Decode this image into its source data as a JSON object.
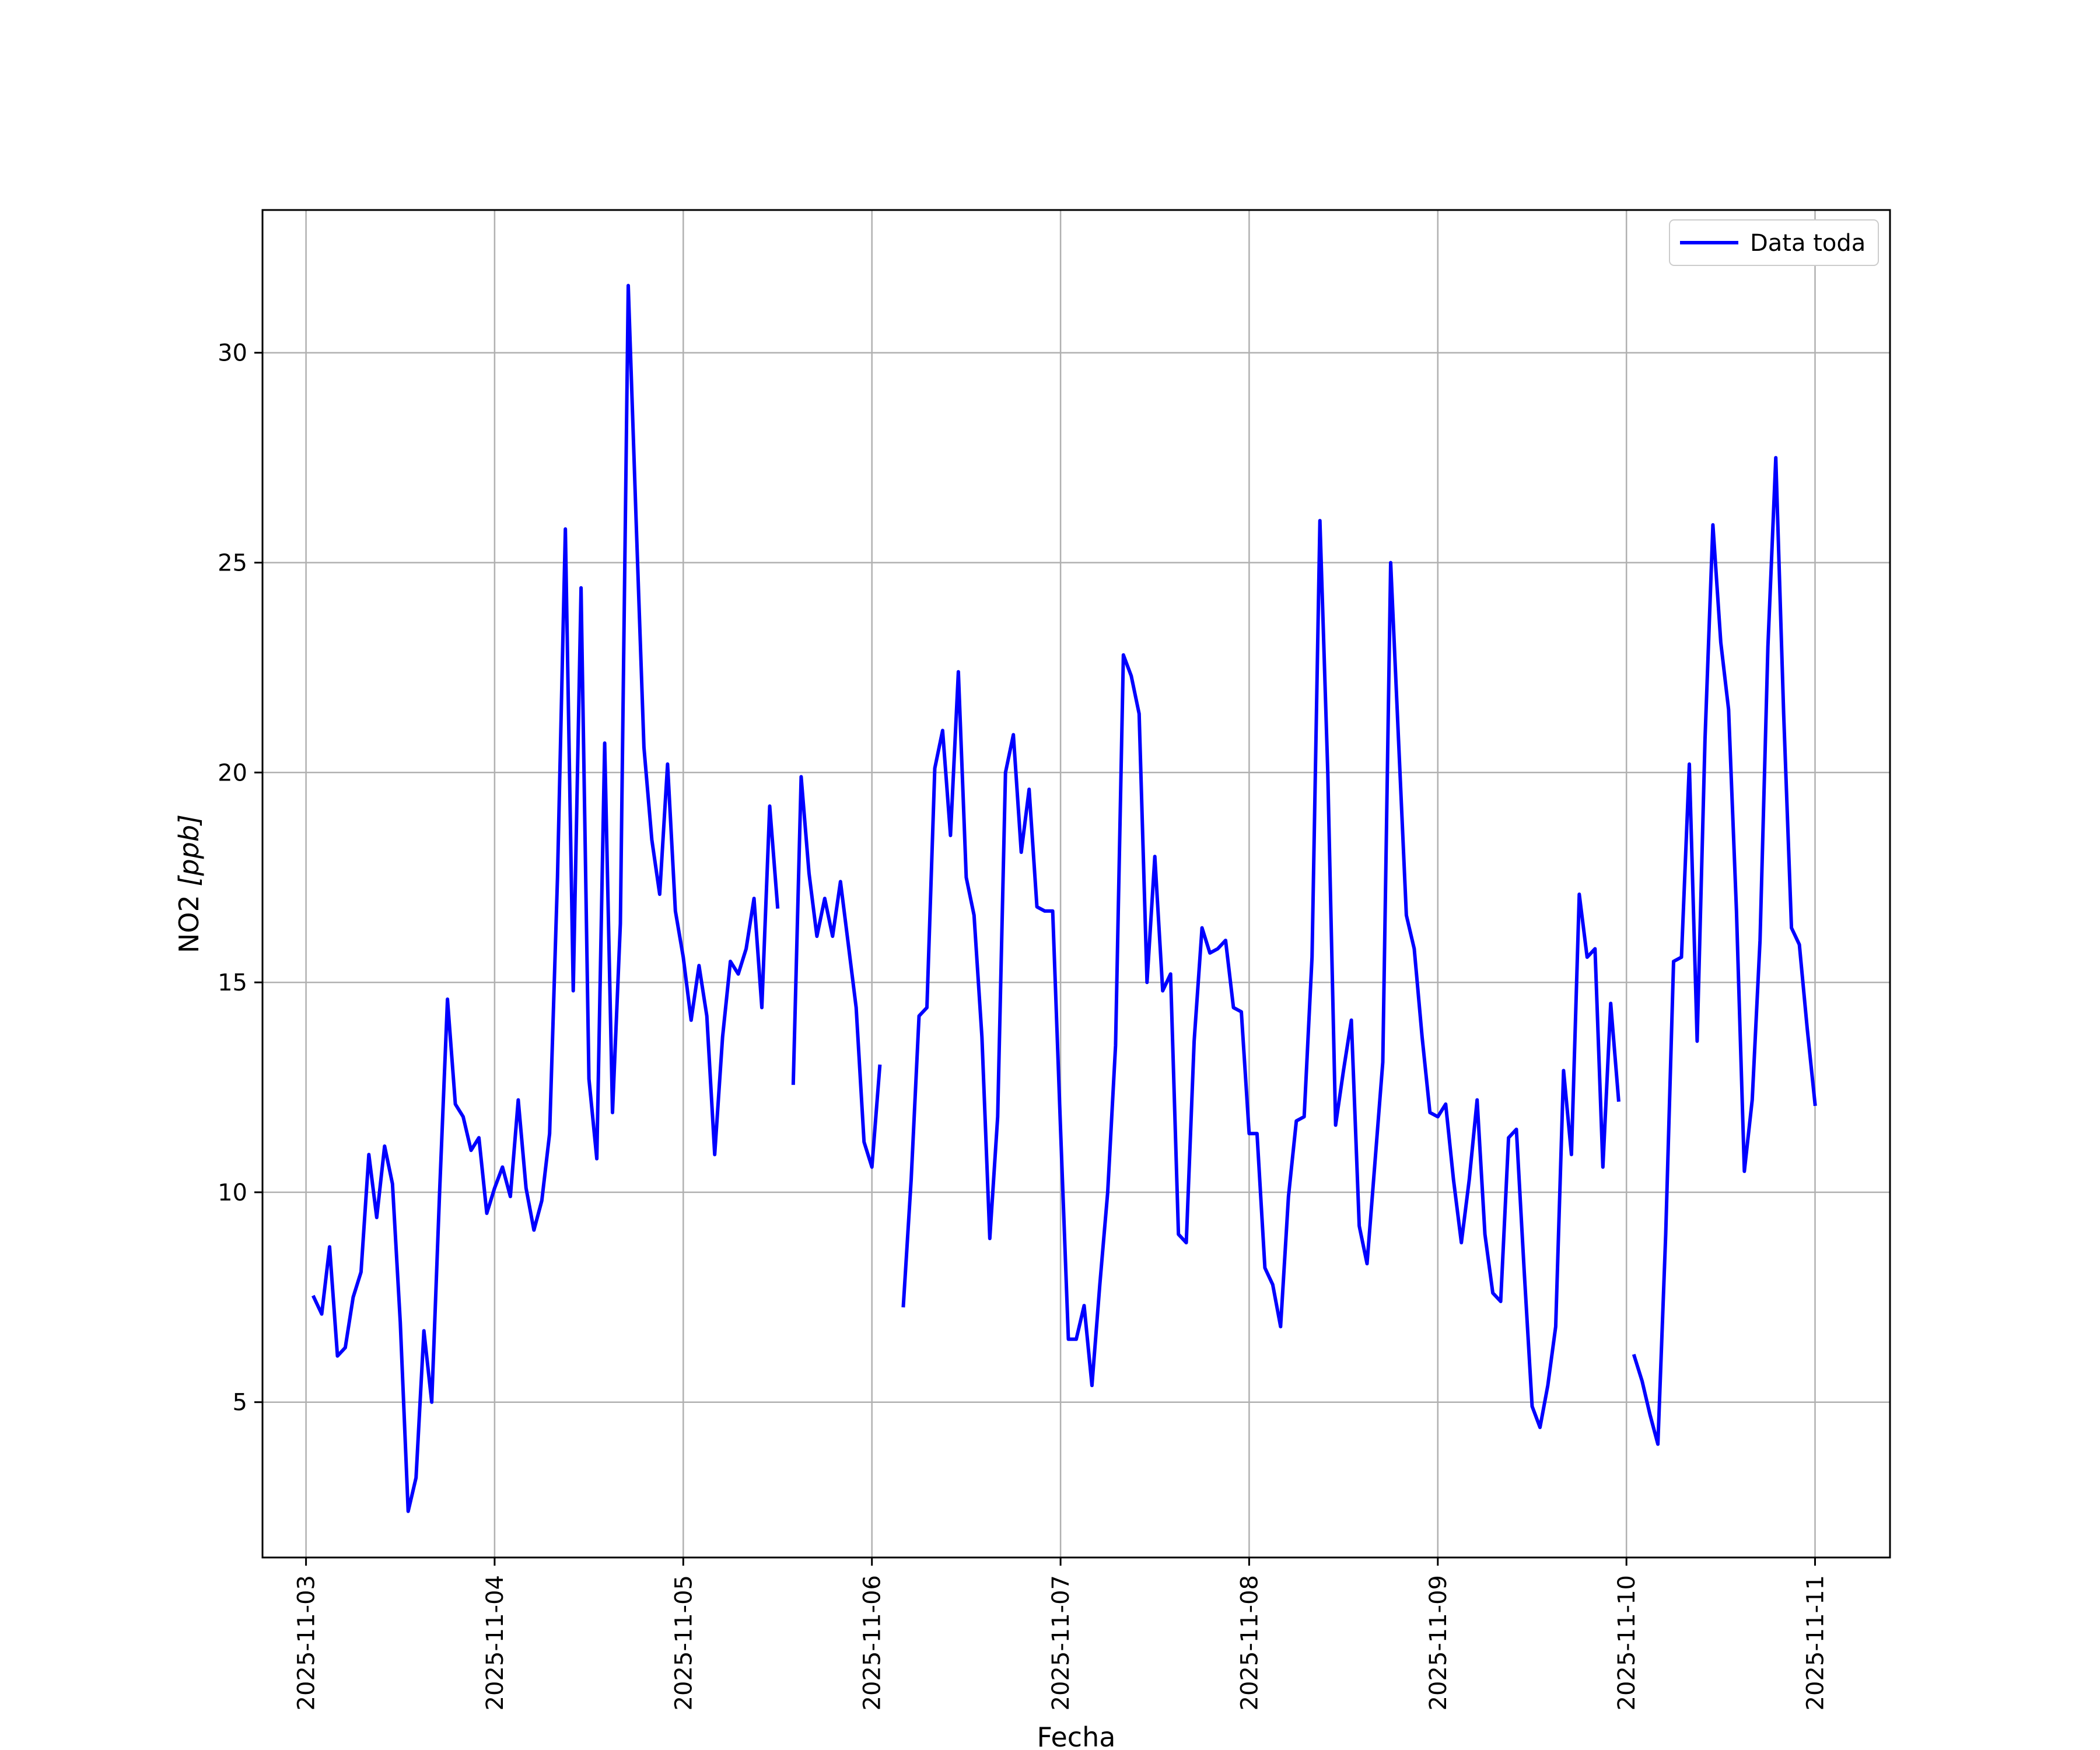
{
  "chart_data": {
    "type": "line",
    "title": "",
    "xlabel": "Fecha",
    "ylabel_main": "NO2 ",
    "ylabel_unit": "[ppb]",
    "x_axis_type": "date",
    "xlim": [
      "2025-11-02T18:28",
      "2025-11-11T09:32"
    ],
    "ylim": [
      1.3,
      33.4
    ],
    "x_ticks": [
      "2025-11-03",
      "2025-11-04",
      "2025-11-05",
      "2025-11-06",
      "2025-11-07",
      "2025-11-08",
      "2025-11-09",
      "2025-11-10",
      "2025-11-11"
    ],
    "y_ticks": [
      5,
      10,
      15,
      20,
      25,
      30
    ],
    "y_tick_labels": [
      "5",
      "10",
      "15",
      "20",
      "25",
      "30"
    ],
    "x_tick_rotation": "vertical",
    "grid": true,
    "legend_position": "top-right",
    "series": [
      {
        "name": "Data toda",
        "color": "#0000ff",
        "segments": [
          [
            [
              "2025-11-03T01:00",
              7.5
            ],
            [
              "2025-11-03T02:00",
              7.1
            ],
            [
              "2025-11-03T03:00",
              8.7
            ],
            [
              "2025-11-03T04:00",
              6.1
            ],
            [
              "2025-11-03T05:00",
              6.3
            ],
            [
              "2025-11-03T06:00",
              7.5
            ],
            [
              "2025-11-03T07:00",
              8.1
            ],
            [
              "2025-11-03T08:00",
              10.9
            ],
            [
              "2025-11-03T09:00",
              9.4
            ],
            [
              "2025-11-03T10:00",
              11.1
            ],
            [
              "2025-11-03T11:00",
              10.2
            ],
            [
              "2025-11-03T12:00",
              6.9
            ],
            [
              "2025-11-03T13:00",
              2.4
            ],
            [
              "2025-11-03T14:00",
              3.2
            ],
            [
              "2025-11-03T15:00",
              6.7
            ],
            [
              "2025-11-03T16:00",
              5.0
            ],
            [
              "2025-11-03T17:00",
              10.0
            ],
            [
              "2025-11-03T18:00",
              14.6
            ],
            [
              "2025-11-03T19:00",
              12.1
            ],
            [
              "2025-11-03T20:00",
              11.8
            ],
            [
              "2025-11-03T21:00",
              11.0
            ],
            [
              "2025-11-03T22:00",
              11.3
            ],
            [
              "2025-11-03T23:00",
              9.5
            ],
            [
              "2025-11-04T00:00",
              10.1
            ],
            [
              "2025-11-04T01:00",
              10.6
            ],
            [
              "2025-11-04T02:00",
              9.9
            ],
            [
              "2025-11-04T03:00",
              12.2
            ],
            [
              "2025-11-04T04:00",
              10.1
            ],
            [
              "2025-11-04T05:00",
              9.1
            ],
            [
              "2025-11-04T06:00",
              9.8
            ],
            [
              "2025-11-04T07:00",
              11.4
            ],
            [
              "2025-11-04T08:00",
              17.5
            ],
            [
              "2025-11-04T09:00",
              25.8
            ],
            [
              "2025-11-04T10:00",
              14.8
            ],
            [
              "2025-11-04T11:00",
              24.4
            ],
            [
              "2025-11-04T12:00",
              12.7
            ],
            [
              "2025-11-04T13:00",
              10.8
            ],
            [
              "2025-11-04T14:00",
              20.7
            ],
            [
              "2025-11-04T15:00",
              11.9
            ],
            [
              "2025-11-04T16:00",
              16.4
            ],
            [
              "2025-11-04T17:00",
              31.6
            ],
            [
              "2025-11-04T18:00",
              26.0
            ],
            [
              "2025-11-04T19:00",
              20.6
            ],
            [
              "2025-11-04T20:00",
              18.4
            ],
            [
              "2025-11-04T21:00",
              17.1
            ],
            [
              "2025-11-04T22:00",
              20.2
            ],
            [
              "2025-11-04T23:00",
              16.7
            ],
            [
              "2025-11-05T00:00",
              15.6
            ],
            [
              "2025-11-05T01:00",
              14.1
            ],
            [
              "2025-11-05T02:00",
              15.4
            ],
            [
              "2025-11-05T03:00",
              14.2
            ],
            [
              "2025-11-05T04:00",
              10.9
            ],
            [
              "2025-11-05T05:00",
              13.7
            ],
            [
              "2025-11-05T06:00",
              15.5
            ],
            [
              "2025-11-05T07:00",
              15.2
            ],
            [
              "2025-11-05T08:00",
              15.8
            ],
            [
              "2025-11-05T09:00",
              17.0
            ],
            [
              "2025-11-05T10:00",
              14.4
            ],
            [
              "2025-11-05T11:00",
              19.2
            ],
            [
              "2025-11-05T12:00",
              16.8
            ]
          ],
          [
            [
              "2025-11-05T14:00",
              12.6
            ],
            [
              "2025-11-05T15:00",
              19.9
            ],
            [
              "2025-11-05T16:00",
              17.6
            ],
            [
              "2025-11-05T17:00",
              16.1
            ],
            [
              "2025-11-05T18:00",
              17.0
            ],
            [
              "2025-11-05T19:00",
              16.1
            ],
            [
              "2025-11-05T20:00",
              17.4
            ],
            [
              "2025-11-05T21:00",
              15.9
            ],
            [
              "2025-11-05T22:00",
              14.4
            ],
            [
              "2025-11-05T23:00",
              11.2
            ],
            [
              "2025-11-06T00:00",
              10.6
            ],
            [
              "2025-11-06T01:00",
              13.0
            ]
          ],
          [
            [
              "2025-11-06T04:00",
              7.3
            ],
            [
              "2025-11-06T05:00",
              10.3
            ],
            [
              "2025-11-06T06:00",
              14.2
            ],
            [
              "2025-11-06T07:00",
              14.4
            ],
            [
              "2025-11-06T08:00",
              20.1
            ],
            [
              "2025-11-06T09:00",
              21.0
            ],
            [
              "2025-11-06T10:00",
              18.5
            ],
            [
              "2025-11-06T11:00",
              22.4
            ],
            [
              "2025-11-06T12:00",
              17.5
            ],
            [
              "2025-11-06T13:00",
              16.6
            ],
            [
              "2025-11-06T14:00",
              13.7
            ],
            [
              "2025-11-06T15:00",
              8.9
            ],
            [
              "2025-11-06T16:00",
              11.8
            ],
            [
              "2025-11-06T17:00",
              20.0
            ],
            [
              "2025-11-06T18:00",
              20.9
            ],
            [
              "2025-11-06T19:00",
              18.1
            ],
            [
              "2025-11-06T20:00",
              19.6
            ],
            [
              "2025-11-06T21:00",
              16.8
            ],
            [
              "2025-11-06T22:00",
              16.7
            ],
            [
              "2025-11-06T23:00",
              16.7
            ],
            [
              "2025-11-07T00:00",
              11.5
            ],
            [
              "2025-11-07T01:00",
              6.5
            ],
            [
              "2025-11-07T02:00",
              6.5
            ],
            [
              "2025-11-07T03:00",
              7.3
            ],
            [
              "2025-11-07T04:00",
              5.4
            ],
            [
              "2025-11-07T05:00",
              7.8
            ],
            [
              "2025-11-07T06:00",
              10.0
            ],
            [
              "2025-11-07T07:00",
              13.5
            ],
            [
              "2025-11-07T08:00",
              22.8
            ],
            [
              "2025-11-07T09:00",
              22.3
            ],
            [
              "2025-11-07T10:00",
              21.4
            ],
            [
              "2025-11-07T11:00",
              15.0
            ],
            [
              "2025-11-07T12:00",
              18.0
            ],
            [
              "2025-11-07T13:00",
              14.8
            ],
            [
              "2025-11-07T14:00",
              15.2
            ],
            [
              "2025-11-07T15:00",
              9.0
            ],
            [
              "2025-11-07T16:00",
              8.8
            ],
            [
              "2025-11-07T17:00",
              13.6
            ],
            [
              "2025-11-07T18:00",
              16.3
            ],
            [
              "2025-11-07T19:00",
              15.7
            ],
            [
              "2025-11-07T20:00",
              15.8
            ],
            [
              "2025-11-07T21:00",
              16.0
            ],
            [
              "2025-11-07T22:00",
              14.4
            ],
            [
              "2025-11-07T23:00",
              14.3
            ],
            [
              "2025-11-08T00:00",
              11.4
            ],
            [
              "2025-11-08T01:00",
              11.4
            ],
            [
              "2025-11-08T02:00",
              8.2
            ],
            [
              "2025-11-08T03:00",
              7.8
            ],
            [
              "2025-11-08T04:00",
              6.8
            ],
            [
              "2025-11-08T05:00",
              9.9
            ],
            [
              "2025-11-08T06:00",
              11.7
            ],
            [
              "2025-11-08T07:00",
              11.8
            ],
            [
              "2025-11-08T08:00",
              15.6
            ],
            [
              "2025-11-08T09:00",
              26.0
            ],
            [
              "2025-11-08T10:00",
              20.0
            ],
            [
              "2025-11-08T11:00",
              11.6
            ],
            [
              "2025-11-08T12:00",
              12.9
            ],
            [
              "2025-11-08T13:00",
              14.1
            ],
            [
              "2025-11-08T14:00",
              9.2
            ],
            [
              "2025-11-08T15:00",
              8.3
            ],
            [
              "2025-11-08T16:00",
              10.7
            ],
            [
              "2025-11-08T17:00",
              13.1
            ],
            [
              "2025-11-08T18:00",
              25.0
            ],
            [
              "2025-11-08T19:00",
              20.8
            ],
            [
              "2025-11-08T20:00",
              16.6
            ],
            [
              "2025-11-08T21:00",
              15.8
            ],
            [
              "2025-11-08T22:00",
              13.7
            ],
            [
              "2025-11-08T23:00",
              11.9
            ],
            [
              "2025-11-09T00:00",
              11.8
            ],
            [
              "2025-11-09T01:00",
              12.1
            ],
            [
              "2025-11-09T02:00",
              10.3
            ],
            [
              "2025-11-09T03:00",
              8.8
            ],
            [
              "2025-11-09T04:00",
              10.3
            ],
            [
              "2025-11-09T05:00",
              12.2
            ],
            [
              "2025-11-09T06:00",
              9.0
            ],
            [
              "2025-11-09T07:00",
              7.6
            ],
            [
              "2025-11-09T08:00",
              7.4
            ],
            [
              "2025-11-09T09:00",
              11.3
            ],
            [
              "2025-11-09T10:00",
              11.5
            ],
            [
              "2025-11-09T11:00",
              8.1
            ],
            [
              "2025-11-09T12:00",
              4.9
            ],
            [
              "2025-11-09T13:00",
              4.4
            ],
            [
              "2025-11-09T14:00",
              5.4
            ],
            [
              "2025-11-09T15:00",
              6.8
            ],
            [
              "2025-11-09T16:00",
              12.9
            ],
            [
              "2025-11-09T17:00",
              10.9
            ],
            [
              "2025-11-09T18:00",
              17.1
            ],
            [
              "2025-11-09T19:00",
              15.6
            ],
            [
              "2025-11-09T20:00",
              15.8
            ],
            [
              "2025-11-09T21:00",
              10.6
            ],
            [
              "2025-11-09T22:00",
              14.5
            ],
            [
              "2025-11-09T23:00",
              12.2
            ]
          ],
          [
            [
              "2025-11-10T01:00",
              6.1
            ],
            [
              "2025-11-10T02:00",
              5.5
            ],
            [
              "2025-11-10T03:00",
              4.7
            ],
            [
              "2025-11-10T04:00",
              4.0
            ],
            [
              "2025-11-10T05:00",
              9.0
            ],
            [
              "2025-11-10T06:00",
              15.5
            ],
            [
              "2025-11-10T07:00",
              15.6
            ],
            [
              "2025-11-10T08:00",
              20.2
            ],
            [
              "2025-11-10T09:00",
              13.6
            ],
            [
              "2025-11-10T10:00",
              20.8
            ],
            [
              "2025-11-10T11:00",
              25.9
            ],
            [
              "2025-11-10T12:00",
              23.1
            ],
            [
              "2025-11-10T13:00",
              21.5
            ],
            [
              "2025-11-10T14:00",
              16.7
            ],
            [
              "2025-11-10T15:00",
              10.5
            ],
            [
              "2025-11-10T16:00",
              12.2
            ],
            [
              "2025-11-10T17:00",
              16.0
            ],
            [
              "2025-11-10T18:00",
              23.0
            ],
            [
              "2025-11-10T19:00",
              27.5
            ],
            [
              "2025-11-10T20:00",
              21.4
            ],
            [
              "2025-11-10T21:00",
              16.3
            ],
            [
              "2025-11-10T22:00",
              15.9
            ],
            [
              "2025-11-10T23:00",
              13.9
            ],
            [
              "2025-11-11T00:00",
              12.1
            ]
          ]
        ]
      }
    ]
  }
}
